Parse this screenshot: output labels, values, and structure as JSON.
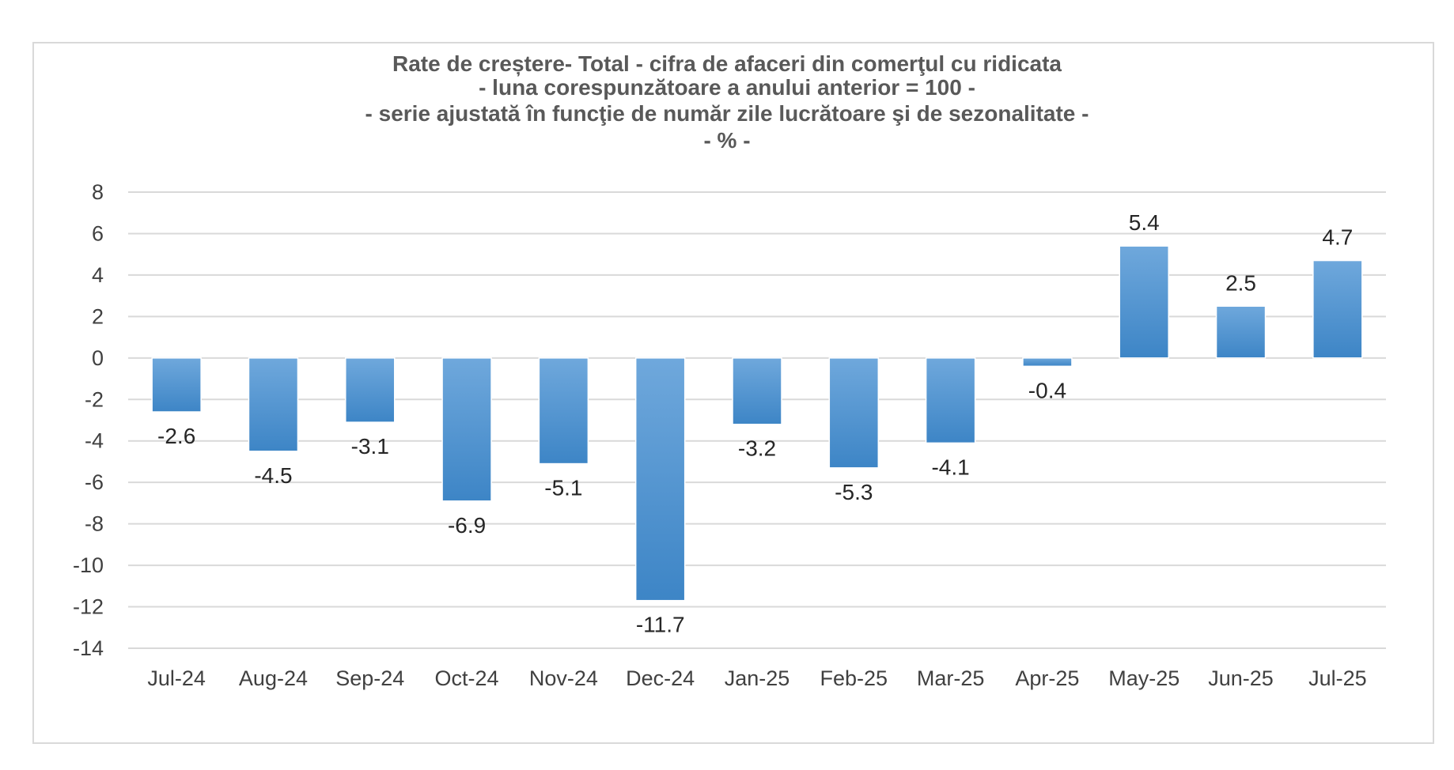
{
  "chart_data": {
    "type": "bar",
    "title": [
      "Rate de creștere- Total - cifra de afaceri din comerţul cu ridicata",
      "- luna corespunzătoare a anului anterior = 100 -",
      "- serie ajustată în funcţie de număr zile lucrătoare şi de sezonalitate -",
      "- % -"
    ],
    "categories": [
      "Jul-24",
      "Aug-24",
      "Sep-24",
      "Oct-24",
      "Nov-24",
      "Dec-24",
      "Jan-25",
      "Feb-25",
      "Mar-25",
      "Apr-25",
      "May-25",
      "Jun-25",
      "Jul-25"
    ],
    "values": [
      -2.6,
      -4.5,
      -3.1,
      -6.9,
      -5.1,
      -11.7,
      -3.2,
      -5.3,
      -4.1,
      -0.4,
      5.4,
      2.5,
      4.7
    ],
    "data_labels": [
      "-2.6",
      "-4.5",
      "-3.1",
      "-6.9",
      "-5.1",
      "-11.7",
      "-3.2",
      "-5.3",
      "-4.1",
      "-0.4",
      "5.4",
      "2.5",
      "4.7"
    ],
    "ylim": [
      -14,
      8
    ],
    "yticks": [
      "8",
      "6",
      "4",
      "2",
      "0",
      "-2",
      "-4",
      "-6",
      "-8",
      "-10",
      "-12",
      "-14"
    ],
    "ytick_values": [
      8,
      6,
      4,
      2,
      0,
      -2,
      -4,
      -6,
      -8,
      -10,
      -12,
      -14
    ],
    "grid": true,
    "legend": "none",
    "colors": {
      "bar_light": "#6fa8dc",
      "bar_dark": "#3d85c6",
      "grid": "#d9d9d9",
      "text": "#404040"
    }
  }
}
